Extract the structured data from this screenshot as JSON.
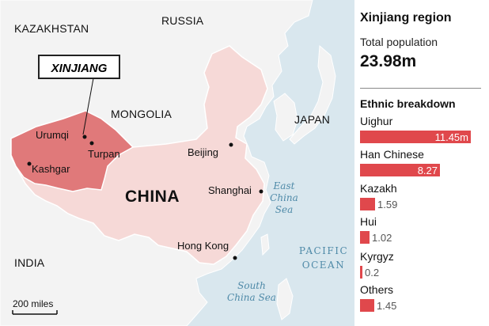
{
  "map": {
    "countries": {
      "kazakhstan": "KAZAKHSTAN",
      "russia": "RUSSIA",
      "mongolia": "MONGOLIA",
      "japan": "JAPAN",
      "china": "CHINA",
      "india": "INDIA"
    },
    "region_label": "XINJIANG",
    "cities": {
      "urumqi": "Urumqi",
      "turpan": "Turpan",
      "kashgar": "Kashgar",
      "beijing": "Beijing",
      "shanghai": "Shanghai",
      "hong_kong": "Hong Kong"
    },
    "seas": {
      "east_china_sea": [
        "East",
        "China",
        "Sea"
      ],
      "south_china_sea": [
        "South",
        "China Sea"
      ]
    },
    "ocean": [
      "PACIFIC",
      "OCEAN"
    ],
    "scale_bar": "200 miles",
    "colors": {
      "land": "#f3f3f3",
      "china": "#f6d9d7",
      "xinjiang": "#e0797a",
      "water": "#d9e7ee",
      "border": "#ffffff",
      "bar": "#e0484c"
    }
  },
  "panel": {
    "title": "Xinjiang region",
    "population_label": "Total population",
    "population_value": "23.98m",
    "ethnic_heading": "Ethnic breakdown",
    "max_value": 11.45,
    "groups": [
      {
        "name": "Uighur",
        "value": 11.45,
        "value_text": "11.45m"
      },
      {
        "name": "Han Chinese",
        "value": 8.27,
        "value_text": "8.27"
      },
      {
        "name": "Kazakh",
        "value": 1.59,
        "value_text": "1.59"
      },
      {
        "name": "Hui",
        "value": 1.02,
        "value_text": "1.02"
      },
      {
        "name": "Kyrgyz",
        "value": 0.2,
        "value_text": "0.2"
      },
      {
        "name": "Others",
        "value": 1.45,
        "value_text": "1.45"
      }
    ]
  }
}
